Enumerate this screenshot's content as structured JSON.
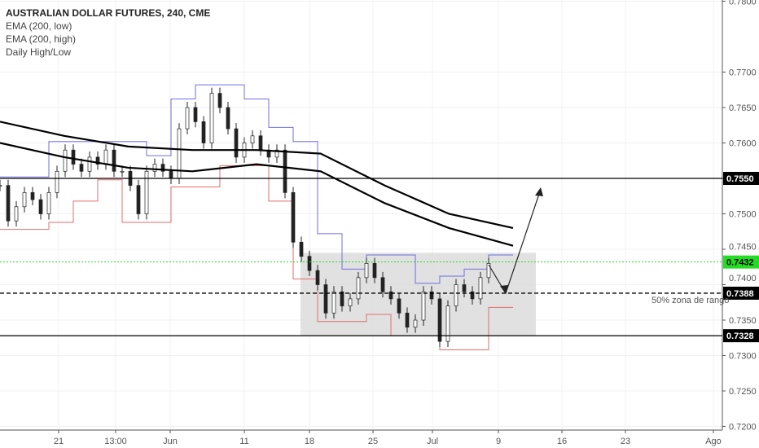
{
  "legend": {
    "title": "AUSTRALIAN DOLLAR FUTURES, 240, CME",
    "items": [
      "EMA (200, low)",
      "EMA (200, high)",
      "Daily High/Low"
    ]
  },
  "chart_data": {
    "type": "candlestick",
    "title": "AUSTRALIAN DOLLAR FUTURES, 240, CME",
    "grid": true,
    "ylim": [
      0.72,
      0.78
    ],
    "y_ticks": [
      "0.7800",
      "0.7700",
      "0.7650",
      "0.7600",
      "0.7550",
      "0.7500",
      "0.7450",
      "0.7400",
      "0.7350",
      "0.7300",
      "0.7250",
      "0.7200"
    ],
    "x_ticks": [
      "21",
      "13:00",
      "Jun",
      "11",
      "18",
      "25",
      "Jul",
      "9",
      "16",
      "23",
      "Ago"
    ],
    "close": [
      0.754,
      0.749,
      0.751,
      0.753,
      0.752,
      0.75,
      0.753,
      0.756,
      0.759,
      0.757,
      0.756,
      0.758,
      0.757,
      0.759,
      0.756,
      0.756,
      0.754,
      0.75,
      0.756,
      0.757,
      0.756,
      0.755,
      0.762,
      0.765,
      0.763,
      0.76,
      0.767,
      0.765,
      0.762,
      0.758,
      0.76,
      0.761,
      0.759,
      0.758,
      0.759,
      0.753,
      0.746,
      0.744,
      0.742,
      0.74,
      0.736,
      0.739,
      0.737,
      0.738,
      0.741,
      0.743,
      0.741,
      0.739,
      0.738,
      0.736,
      0.734,
      0.735,
      0.739,
      0.738,
      0.732,
      0.737,
      0.74,
      0.739,
      0.738,
      0.741,
      0.743
    ],
    "ema_200_low": [
      0.763,
      0.761,
      0.7595,
      0.759,
      0.759,
      0.7585,
      0.754,
      0.75,
      0.748
    ],
    "ema_200_high": [
      0.76,
      0.758,
      0.7565,
      0.756,
      0.757,
      0.756,
      0.7515,
      0.748,
      0.7455
    ],
    "price_levels": [
      {
        "value": "0.7550",
        "color": "#000000"
      },
      {
        "value": "0.7432",
        "color": "#22dd22"
      },
      {
        "value": "0.7388",
        "color": "#000000",
        "note": "50% zona de rango"
      },
      {
        "value": "0.7328",
        "color": "#000000"
      }
    ],
    "range_box": {
      "top": 0.7445,
      "bottom": 0.7328
    }
  }
}
